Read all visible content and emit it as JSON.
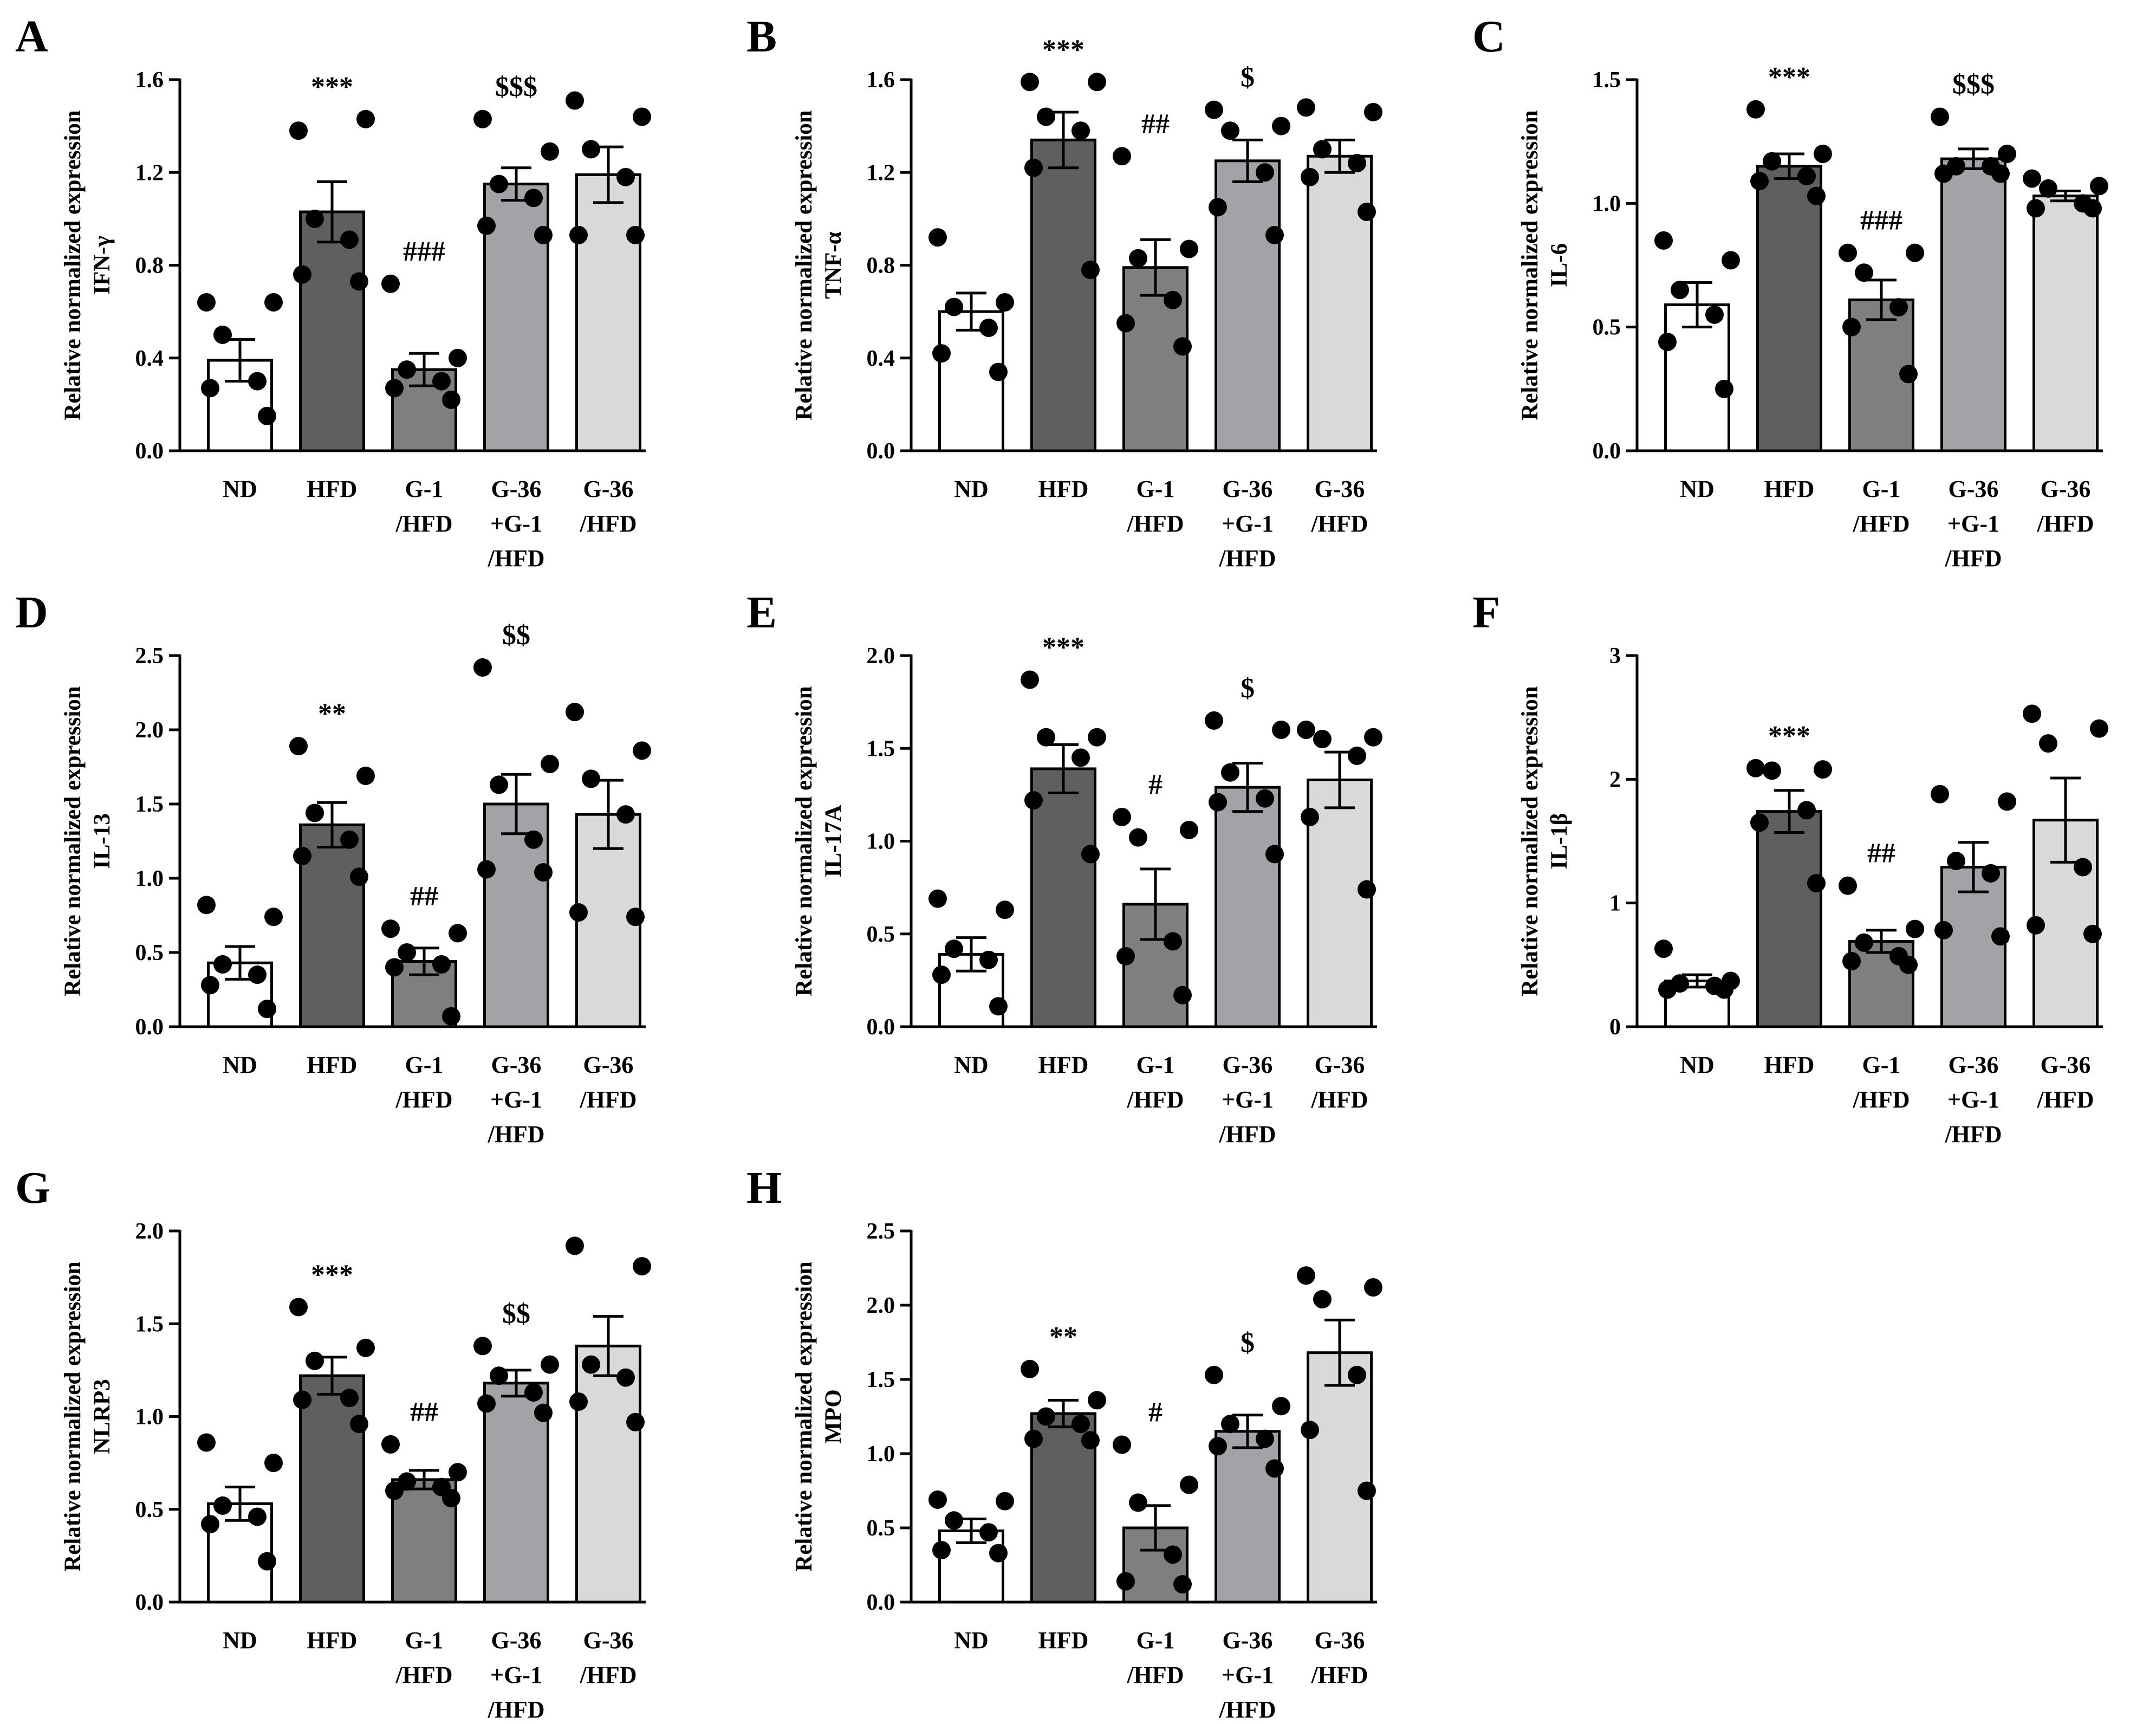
{
  "figure": {
    "type": "bar-chart-grid",
    "bar_colors": [
      "#ffffff",
      "#5f5f5f",
      "#7f7f7f",
      "#a3a3a7",
      "#d9d9d9"
    ],
    "dot_color": "#000000",
    "common_ylabel_line1": "Relative normalized expression"
  },
  "chart_data": [
    {
      "panel": "A",
      "type": "bar",
      "ylabel": "IFN-γ",
      "ylim": [
        0,
        1.6
      ],
      "yticks": [
        "0.0",
        "0.4",
        "0.8",
        "1.2",
        "1.6"
      ],
      "categories": [
        [
          "ND"
        ],
        [
          "HFD"
        ],
        [
          "G-1",
          "/HFD"
        ],
        [
          "G-36",
          "+G-1",
          "/HFD"
        ],
        [
          "G-36",
          "/HFD"
        ]
      ],
      "values": [
        0.39,
        1.03,
        0.35,
        1.15,
        1.19
      ],
      "sem": [
        0.09,
        0.13,
        0.07,
        0.07,
        0.12
      ],
      "points": [
        [
          0.64,
          0.64,
          0.5,
          0.3,
          0.27,
          0.15
        ],
        [
          1.38,
          1.43,
          1.0,
          0.91,
          0.76,
          0.73
        ],
        [
          0.72,
          0.4,
          0.35,
          0.3,
          0.27,
          0.22
        ],
        [
          1.43,
          1.29,
          1.15,
          1.09,
          0.97,
          0.93
        ],
        [
          1.51,
          1.44,
          1.3,
          1.18,
          0.93,
          0.93
        ]
      ],
      "significance": [
        "",
        "***",
        "###",
        "$$$",
        ""
      ]
    },
    {
      "panel": "B",
      "type": "bar",
      "ylabel": "TNF-α",
      "ylim": [
        0,
        1.6
      ],
      "yticks": [
        "0.0",
        "0.4",
        "0.8",
        "1.2",
        "1.6"
      ],
      "categories": [
        [
          "ND"
        ],
        [
          "HFD"
        ],
        [
          "G-1",
          "/HFD"
        ],
        [
          "G-36",
          "+G-1",
          "/HFD"
        ],
        [
          "G-36",
          "/HFD"
        ]
      ],
      "values": [
        0.6,
        1.34,
        0.79,
        1.25,
        1.27
      ],
      "sem": [
        0.08,
        0.12,
        0.12,
        0.09,
        0.07
      ],
      "points": [
        [
          0.92,
          0.64,
          0.62,
          0.53,
          0.42,
          0.34
        ],
        [
          1.59,
          1.59,
          1.44,
          1.38,
          1.22,
          0.78
        ],
        [
          1.27,
          0.87,
          0.83,
          0.65,
          0.55,
          0.45
        ],
        [
          1.47,
          1.4,
          1.38,
          1.2,
          1.05,
          0.93
        ],
        [
          1.48,
          1.46,
          1.3,
          1.24,
          1.18,
          1.03
        ]
      ],
      "significance": [
        "",
        "***",
        "##",
        "$",
        ""
      ]
    },
    {
      "panel": "C",
      "type": "bar",
      "ylabel": "IL-6",
      "ylim": [
        0,
        1.5
      ],
      "yticks": [
        "0.0",
        "0.5",
        "1.0",
        "1.5"
      ],
      "categories": [
        [
          "ND"
        ],
        [
          "HFD"
        ],
        [
          "G-1",
          "/HFD"
        ],
        [
          "G-36",
          "+G-1",
          "/HFD"
        ],
        [
          "G-36",
          "/HFD"
        ]
      ],
      "values": [
        0.59,
        1.15,
        0.61,
        1.18,
        1.03
      ],
      "sem": [
        0.09,
        0.05,
        0.08,
        0.04,
        0.02
      ],
      "points": [
        [
          0.85,
          0.77,
          0.65,
          0.55,
          0.44,
          0.25
        ],
        [
          1.38,
          1.2,
          1.17,
          1.11,
          1.09,
          1.03
        ],
        [
          0.8,
          0.8,
          0.72,
          0.58,
          0.5,
          0.31
        ],
        [
          1.35,
          1.2,
          1.15,
          1.15,
          1.12,
          1.12
        ],
        [
          1.1,
          1.07,
          1.06,
          1.0,
          0.98,
          0.98
        ]
      ],
      "significance": [
        "",
        "***",
        "###",
        "$$$",
        ""
      ]
    },
    {
      "panel": "D",
      "type": "bar",
      "ylabel": "IL-13",
      "ylim": [
        0,
        2.5
      ],
      "yticks": [
        "0.0",
        "0.5",
        "1.0",
        "1.5",
        "2.0",
        "2.5"
      ],
      "categories": [
        [
          "ND"
        ],
        [
          "HFD"
        ],
        [
          "G-1",
          "/HFD"
        ],
        [
          "G-36",
          "+G-1",
          "/HFD"
        ],
        [
          "G-36",
          "/HFD"
        ]
      ],
      "values": [
        0.43,
        1.36,
        0.44,
        1.5,
        1.43
      ],
      "sem": [
        0.11,
        0.15,
        0.09,
        0.2,
        0.23
      ],
      "points": [
        [
          0.82,
          0.74,
          0.42,
          0.35,
          0.28,
          0.12
        ],
        [
          1.89,
          1.69,
          1.44,
          1.26,
          1.15,
          1.01
        ],
        [
          0.66,
          0.63,
          0.5,
          0.42,
          0.4,
          0.07
        ],
        [
          2.42,
          1.77,
          1.63,
          1.26,
          1.06,
          1.04
        ],
        [
          2.12,
          1.86,
          1.67,
          1.43,
          0.77,
          0.74
        ]
      ],
      "significance": [
        "",
        "**",
        "##",
        "$$",
        ""
      ]
    },
    {
      "panel": "E",
      "type": "bar",
      "ylabel": "IL-17A",
      "ylim": [
        0,
        2.0
      ],
      "yticks": [
        "0.0",
        "0.5",
        "1.0",
        "1.5",
        "2.0"
      ],
      "categories": [
        [
          "ND"
        ],
        [
          "HFD"
        ],
        [
          "G-1",
          "/HFD"
        ],
        [
          "G-36",
          "+G-1",
          "/HFD"
        ],
        [
          "G-36",
          "/HFD"
        ]
      ],
      "values": [
        0.39,
        1.39,
        0.66,
        1.29,
        1.33
      ],
      "sem": [
        0.09,
        0.13,
        0.19,
        0.13,
        0.15
      ],
      "points": [
        [
          0.69,
          0.63,
          0.42,
          0.36,
          0.28,
          0.11
        ],
        [
          1.87,
          1.56,
          1.56,
          1.45,
          1.22,
          0.93
        ],
        [
          1.13,
          1.06,
          1.02,
          0.46,
          0.38,
          0.17
        ],
        [
          1.65,
          1.6,
          1.37,
          1.23,
          1.21,
          0.93
        ],
        [
          1.6,
          1.56,
          1.55,
          1.46,
          1.13,
          0.74
        ]
      ],
      "significance": [
        "",
        "***",
        "#",
        "$",
        ""
      ]
    },
    {
      "panel": "F",
      "type": "bar",
      "ylabel": "IL-1β",
      "ylim": [
        0,
        3
      ],
      "yticks": [
        "0",
        "1",
        "2",
        "3"
      ],
      "categories": [
        [
          "ND"
        ],
        [
          "HFD"
        ],
        [
          "G-1",
          "/HFD"
        ],
        [
          "G-36",
          "+G-1",
          "/HFD"
        ],
        [
          "G-36",
          "/HFD"
        ]
      ],
      "values": [
        0.37,
        1.74,
        0.69,
        1.29,
        1.67
      ],
      "sem": [
        0.05,
        0.17,
        0.09,
        0.2,
        0.34
      ],
      "points": [
        [
          0.63,
          0.37,
          0.35,
          0.33,
          0.3,
          0.3
        ],
        [
          2.09,
          2.08,
          2.07,
          1.75,
          1.65,
          1.16
        ],
        [
          1.14,
          0.79,
          0.68,
          0.57,
          0.53,
          0.5
        ],
        [
          1.88,
          1.82,
          1.34,
          1.24,
          0.78,
          0.73
        ],
        [
          2.53,
          2.41,
          2.29,
          1.29,
          0.82,
          0.75
        ]
      ],
      "significance": [
        "",
        "***",
        "##",
        "",
        ""
      ]
    },
    {
      "panel": "G",
      "type": "bar",
      "ylabel": "NLRP3",
      "ylim": [
        0,
        2.0
      ],
      "yticks": [
        "0.0",
        "0.5",
        "1.0",
        "1.5",
        "2.0"
      ],
      "categories": [
        [
          "ND"
        ],
        [
          "HFD"
        ],
        [
          "G-1",
          "/HFD"
        ],
        [
          "G-36",
          "+G-1",
          "/HFD"
        ],
        [
          "G-36",
          "/HFD"
        ]
      ],
      "values": [
        0.53,
        1.22,
        0.66,
        1.18,
        1.38
      ],
      "sem": [
        0.09,
        0.1,
        0.05,
        0.07,
        0.16
      ],
      "points": [
        [
          0.86,
          0.75,
          0.52,
          0.46,
          0.42,
          0.22
        ],
        [
          1.59,
          1.37,
          1.3,
          1.1,
          1.09,
          0.96
        ],
        [
          0.85,
          0.7,
          0.65,
          0.62,
          0.6,
          0.56
        ],
        [
          1.38,
          1.28,
          1.22,
          1.13,
          1.07,
          1.02
        ],
        [
          1.92,
          1.81,
          1.28,
          1.21,
          1.08,
          0.97
        ]
      ],
      "significance": [
        "",
        "***",
        "##",
        "$$",
        ""
      ]
    },
    {
      "panel": "H",
      "type": "bar",
      "ylabel": "MPO",
      "ylim": [
        0,
        2.5
      ],
      "yticks": [
        "0.0",
        "0.5",
        "1.0",
        "1.5",
        "2.0",
        "2.5"
      ],
      "categories": [
        [
          "ND"
        ],
        [
          "HFD"
        ],
        [
          "G-1",
          "/HFD"
        ],
        [
          "G-36",
          "+G-1",
          "/HFD"
        ],
        [
          "G-36",
          "/HFD"
        ]
      ],
      "values": [
        0.48,
        1.27,
        0.5,
        1.15,
        1.68
      ],
      "sem": [
        0.08,
        0.09,
        0.15,
        0.11,
        0.22
      ],
      "points": [
        [
          0.69,
          0.68,
          0.55,
          0.47,
          0.35,
          0.33
        ],
        [
          1.57,
          1.36,
          1.25,
          1.2,
          1.1,
          1.09
        ],
        [
          1.06,
          0.79,
          0.67,
          0.32,
          0.14,
          0.12
        ],
        [
          1.53,
          1.32,
          1.2,
          1.1,
          1.05,
          0.9
        ],
        [
          2.2,
          2.12,
          2.04,
          1.53,
          1.16,
          0.75
        ]
      ],
      "significance": [
        "",
        "**",
        "#",
        "$",
        ""
      ]
    }
  ]
}
